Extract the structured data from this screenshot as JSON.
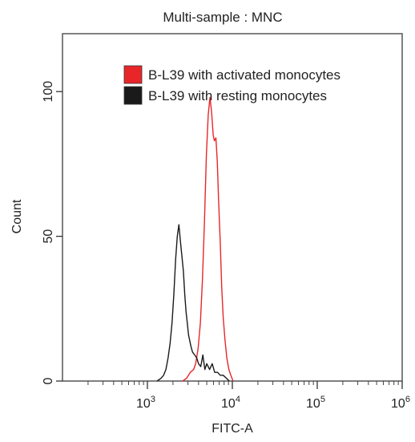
{
  "chart_data": {
    "type": "line",
    "title": "Multi-sample : MNC",
    "xlabel": "FITC-A",
    "ylabel": "Count",
    "x_scale": "log",
    "xlim": [
      100,
      1000000
    ],
    "ylim": [
      0,
      120
    ],
    "x_major_ticks": [
      {
        "value": 1000,
        "base": "10",
        "exp": "3"
      },
      {
        "value": 10000,
        "base": "10",
        "exp": "4"
      },
      {
        "value": 100000,
        "base": "10",
        "exp": "5"
      },
      {
        "value": 1000000,
        "base": "10",
        "exp": "6"
      }
    ],
    "y_ticks": [
      {
        "value": 0,
        "label": "0"
      },
      {
        "value": 50,
        "label": "50"
      },
      {
        "value": 100,
        "label": "100"
      }
    ],
    "legend_position": "top-right",
    "series": [
      {
        "name": "B-L39 with activated monocytes",
        "color": "#e8262a",
        "points": [
          [
            2600,
            0
          ],
          [
            2900,
            1
          ],
          [
            3200,
            3
          ],
          [
            3500,
            4
          ],
          [
            3700,
            6
          ],
          [
            3950,
            11
          ],
          [
            4200,
            20
          ],
          [
            4450,
            35
          ],
          [
            4700,
            55
          ],
          [
            4950,
            78
          ],
          [
            5200,
            92
          ],
          [
            5450,
            98
          ],
          [
            5700,
            93
          ],
          [
            5950,
            85
          ],
          [
            6150,
            83
          ],
          [
            6400,
            84
          ],
          [
            6650,
            76
          ],
          [
            6900,
            62
          ],
          [
            7200,
            48
          ],
          [
            7500,
            32
          ],
          [
            7800,
            22
          ],
          [
            8200,
            14
          ],
          [
            8600,
            8
          ],
          [
            9100,
            4
          ],
          [
            9600,
            2
          ],
          [
            10200,
            0
          ]
        ]
      },
      {
        "name": "B-L39 with resting monocytes",
        "color": "#1a1a1a",
        "points": [
          [
            1300,
            0
          ],
          [
            1450,
            1
          ],
          [
            1550,
            2
          ],
          [
            1650,
            4
          ],
          [
            1750,
            8
          ],
          [
            1850,
            13
          ],
          [
            1950,
            20
          ],
          [
            2050,
            30
          ],
          [
            2150,
            42
          ],
          [
            2250,
            50
          ],
          [
            2350,
            54
          ],
          [
            2450,
            48
          ],
          [
            2550,
            43
          ],
          [
            2650,
            38
          ],
          [
            2750,
            30
          ],
          [
            2850,
            24
          ],
          [
            2950,
            20
          ],
          [
            3050,
            16
          ],
          [
            3150,
            14
          ],
          [
            3250,
            12
          ],
          [
            3400,
            10
          ],
          [
            3600,
            9
          ],
          [
            3800,
            8
          ],
          [
            4000,
            6
          ],
          [
            4250,
            5
          ],
          [
            4500,
            9
          ],
          [
            4750,
            4
          ],
          [
            5000,
            6
          ],
          [
            5400,
            4
          ],
          [
            5800,
            6
          ],
          [
            6200,
            3
          ],
          [
            6700,
            3
          ],
          [
            7200,
            2
          ],
          [
            7800,
            2
          ],
          [
            8500,
            1
          ],
          [
            9200,
            0
          ]
        ]
      }
    ]
  }
}
